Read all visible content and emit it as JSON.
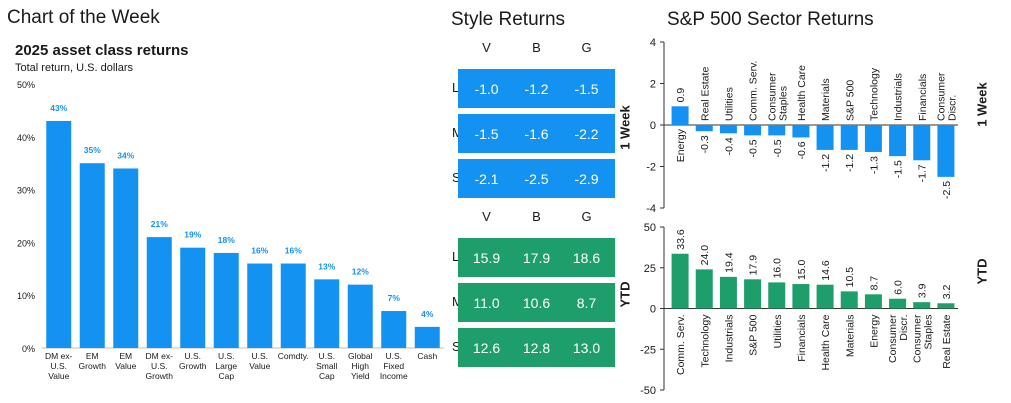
{
  "header": {
    "title": "Chart of the Week"
  },
  "style_header": {
    "title": "Style Returns"
  },
  "sector_header": {
    "title": "S&P 500 Sector Returns"
  },
  "colors": {
    "blue": "#1392F2",
    "green": "#1E9E6A",
    "text": "#1a1a1a",
    "grid": "#d9d9d9"
  },
  "chart_data": [
    {
      "type": "bar",
      "title": "2025 asset class returns",
      "subtitle": "Total return, U.S. dollars",
      "categories": [
        [
          "DM ex-",
          "U.S.",
          "Value"
        ],
        [
          "EM",
          "Growth"
        ],
        [
          "EM",
          "Value"
        ],
        [
          "DM ex-",
          "U.S.",
          "Growth"
        ],
        [
          "U.S.",
          "Growth"
        ],
        [
          "U.S.",
          "Large",
          "Cap"
        ],
        [
          "U.S.",
          "Value"
        ],
        [
          "Comdty."
        ],
        [
          "U.S.",
          "Small",
          "Cap"
        ],
        [
          "Global",
          "High",
          "Yield"
        ],
        [
          "U.S.",
          "Fixed",
          "Income"
        ],
        [
          "Cash"
        ]
      ],
      "values": [
        43,
        35,
        34,
        21,
        19,
        18,
        16,
        16,
        13,
        12,
        7,
        4
      ],
      "data_labels": [
        "43%",
        "35%",
        "34%",
        "21%",
        "19%",
        "18%",
        "16%",
        "16%",
        "13%",
        "12%",
        "7%",
        "4%"
      ],
      "ylim": [
        0,
        50
      ],
      "yticks": [
        0,
        10,
        20,
        30,
        40,
        50
      ],
      "ytick_labels": [
        "0%",
        "10%",
        "20%",
        "30%",
        "40%",
        "50%"
      ],
      "grid": false
    },
    {
      "type": "table",
      "title": "Style Returns",
      "columns": [
        "V",
        "B",
        "G"
      ],
      "rows": [
        "L",
        "M",
        "S"
      ],
      "side_label": "1 Week",
      "values": [
        [
          "-1.0",
          "-1.2",
          "-1.5"
        ],
        [
          "-1.5",
          "-1.6",
          "-2.2"
        ],
        [
          "-2.1",
          "-2.5",
          "-2.9"
        ]
      ]
    },
    {
      "type": "table",
      "title": "Style Returns",
      "columns": [
        "V",
        "B",
        "G"
      ],
      "rows": [
        "L",
        "M",
        "S"
      ],
      "side_label": "YTD",
      "values": [
        [
          "15.9",
          "17.9",
          "18.6"
        ],
        [
          "11.0",
          "10.6",
          "8.7"
        ],
        [
          "12.6",
          "12.8",
          "13.0"
        ]
      ]
    },
    {
      "type": "bar",
      "title": "S&P 500 Sector Returns",
      "side_label": "1 Week",
      "categories": [
        "Energy",
        "Real Estate",
        "Utilities",
        "Comm. Serv.",
        "Consumer Staples",
        "Health Care",
        "Materials",
        "S&P 500",
        "Technology",
        "Industrials",
        "Financials",
        "Consumer Discr."
      ],
      "category_lines": [
        [
          "Energy"
        ],
        [
          "Real Estate"
        ],
        [
          "Utilities"
        ],
        [
          "Comm. Serv."
        ],
        [
          "Consumer",
          "Staples"
        ],
        [
          "Health Care"
        ],
        [
          "Materials"
        ],
        [
          "S&P 500"
        ],
        [
          "Technology"
        ],
        [
          "Industrials"
        ],
        [
          "Financials"
        ],
        [
          "Consumer",
          "Discr."
        ]
      ],
      "values": [
        0.9,
        -0.3,
        -0.4,
        -0.5,
        -0.5,
        -0.6,
        -1.2,
        -1.2,
        -1.3,
        -1.5,
        -1.7,
        -2.5
      ],
      "data_labels": [
        "0.9",
        "-0.3",
        "-0.4",
        "-0.5",
        "-0.5",
        "-0.6",
        "-1.2",
        "-1.2",
        "-1.3",
        "-1.5",
        "-1.7",
        "-2.5"
      ],
      "ylim": [
        -4,
        4
      ],
      "yticks": [
        -4,
        -2,
        0,
        2,
        4
      ],
      "ytick_labels": [
        "-4",
        "-2",
        "0",
        "2",
        "4"
      ]
    },
    {
      "type": "bar",
      "title": "S&P 500 Sector Returns",
      "side_label": "YTD",
      "categories": [
        "Comm. Serv.",
        "Technology",
        "Industrials",
        "S&P 500",
        "Utilities",
        "Financials",
        "Health Care",
        "Materials",
        "Energy",
        "Consumer Discr.",
        "Consumer Staples",
        "Real Estate"
      ],
      "category_lines": [
        [
          "Comm. Serv."
        ],
        [
          "Technology"
        ],
        [
          "Industrials"
        ],
        [
          "S&P 500"
        ],
        [
          "Utilities"
        ],
        [
          "Financials"
        ],
        [
          "Health Care"
        ],
        [
          "Materials"
        ],
        [
          "Energy"
        ],
        [
          "Consumer",
          "Discr."
        ],
        [
          "Consumer",
          "Staples"
        ],
        [
          "Real Estate"
        ]
      ],
      "values": [
        33.6,
        24.0,
        19.4,
        17.9,
        16.0,
        15.0,
        14.6,
        10.5,
        8.7,
        6.0,
        3.9,
        3.2
      ],
      "data_labels": [
        "33.6",
        "24.0",
        "19.4",
        "17.9",
        "16.0",
        "15.0",
        "14.6",
        "10.5",
        "8.7",
        "6.0",
        "3.9",
        "3.2"
      ],
      "ylim": [
        -50,
        50
      ],
      "yticks": [
        -50,
        -25,
        0,
        25,
        50
      ],
      "ytick_labels": [
        "-50",
        "-25",
        "0",
        "25",
        "50"
      ]
    }
  ]
}
